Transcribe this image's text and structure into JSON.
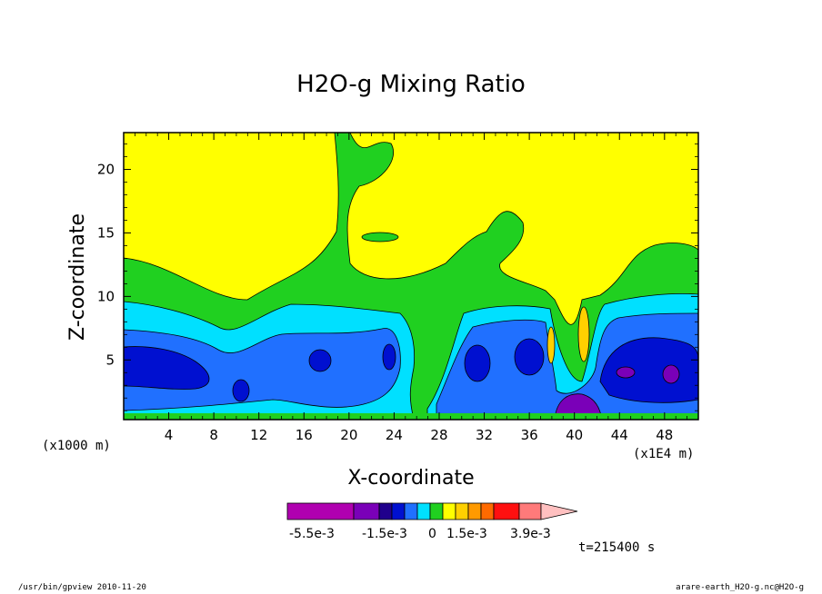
{
  "chart_data": {
    "type": "heatmap",
    "title": "H2O-g Mixing Ratio",
    "xlabel": "X-coordinate",
    "ylabel": "Z-coordinate",
    "x_unit": "(x1000 m)",
    "x_scale_note": "(x1E4 m)",
    "xlim": [
      0,
      51
    ],
    "ylim": [
      0.3,
      22.9
    ],
    "x_ticks": [
      "4",
      "8",
      "12",
      "16",
      "20",
      "24",
      "28",
      "32",
      "36",
      "40",
      "44",
      "48"
    ],
    "y_ticks": [
      "5",
      "10",
      "15",
      "20"
    ],
    "colorbar": {
      "colors": [
        "#b000b0",
        "#7a00b8",
        "#20008c",
        "#0010d0",
        "#2070ff",
        "#00e0ff",
        "#20d020",
        "#ffff00",
        "#ffd000",
        "#ff9a00",
        "#ff6a00",
        "#ff1010",
        "#ff7a7a",
        "#ffc0c0"
      ],
      "labels": [
        "-5.5e-3",
        "-1.5e-3",
        "0",
        "1.5e-3",
        "3.9e-3"
      ],
      "extend": "max"
    },
    "contour_regions": [
      {
        "level": "yellow",
        "color": "#ffff00",
        "note": "upper layer above ~10"
      },
      {
        "level": "green",
        "color": "#20d020"
      },
      {
        "level": "cyan",
        "color": "#00e0ff"
      },
      {
        "level": "blue",
        "color": "#2070ff"
      },
      {
        "level": "dark-blue",
        "color": "#0010d0"
      },
      {
        "level": "purple",
        "color": "#7a00b8"
      }
    ]
  },
  "time_label": "t=215400 s",
  "footer_left": "/usr/bin/gpview  2010-11-20",
  "footer_right": "arare-earth_H2O-g.nc@H2O-g"
}
